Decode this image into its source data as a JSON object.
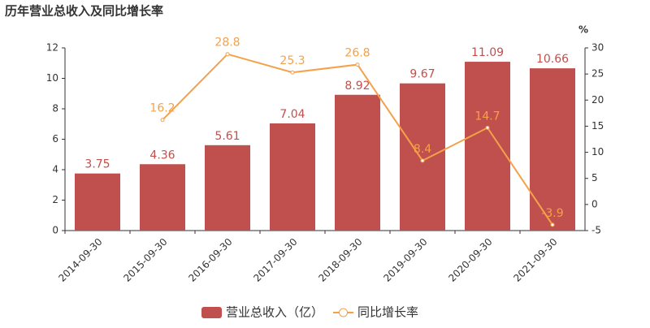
{
  "chart_data": {
    "type": "bar",
    "title": "历年营业总收入及同比增长率",
    "categories": [
      "2014-09-30",
      "2015-09-30",
      "2016-09-30",
      "2017-09-30",
      "2018-09-30",
      "2019-09-30",
      "2020-09-30",
      "2021-09-30"
    ],
    "series": [
      {
        "name": "营业总收入（亿）",
        "type": "bar",
        "color": "#c0504d",
        "values": [
          3.75,
          4.36,
          5.61,
          7.04,
          8.92,
          9.67,
          11.09,
          10.66
        ]
      },
      {
        "name": "同比增长率",
        "type": "line",
        "axis": "y2",
        "color": "#f5a14a",
        "values": [
          null,
          16.2,
          28.8,
          25.3,
          26.8,
          8.4,
          14.7,
          -3.9
        ]
      }
    ],
    "ylim": [
      0,
      12
    ],
    "yticks": [
      0,
      2,
      4,
      6,
      8,
      10,
      12
    ],
    "y2lim": [
      -5,
      30
    ],
    "y2ticks": [
      -5,
      0,
      5,
      10,
      15,
      20,
      25,
      30
    ],
    "y2label": "%",
    "legend": "bottom"
  }
}
